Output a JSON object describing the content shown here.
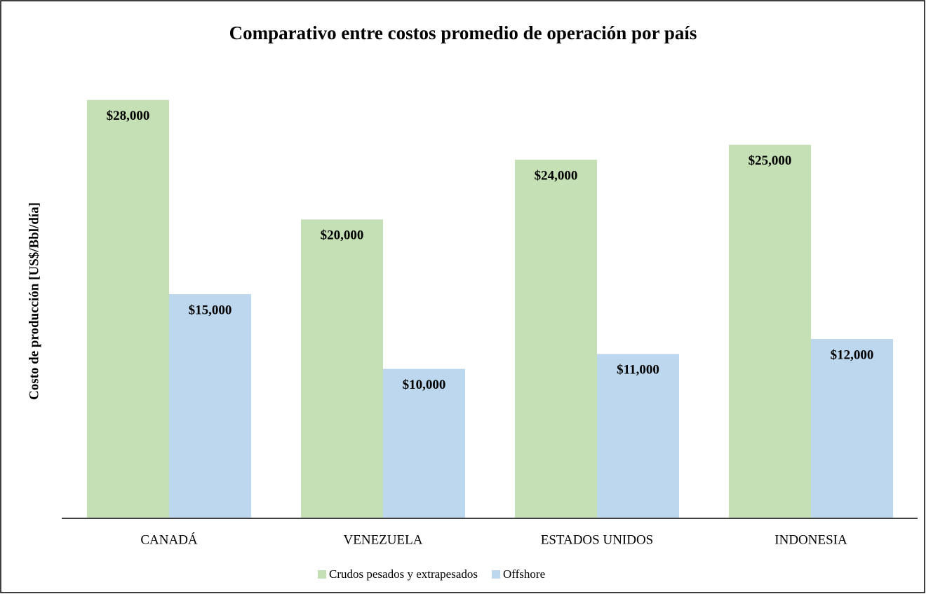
{
  "chart_data": {
    "type": "bar",
    "title": "Comparativo entre costos promedio de operación por país",
    "y_label": "Costo de producción [US$/Bbl/día]",
    "categories": [
      "CANADÁ",
      "VENEZUELA",
      "ESTADOS UNIDOS",
      "INDONESIA"
    ],
    "series": [
      {
        "name": "Crudos pesados y extrapesados",
        "color": "#c5e0b4",
        "values": [
          28000,
          20000,
          24000,
          25000
        ],
        "value_labels": [
          "$28,000",
          "$20,000",
          "$24,000",
          "$25,000"
        ]
      },
      {
        "name": "Offshore",
        "color": "#bdd7ee",
        "values": [
          15000,
          10000,
          11000,
          12000
        ],
        "value_labels": [
          "$15,000",
          "$10,000",
          "$11,000",
          "$12,000"
        ]
      }
    ],
    "ylim": [
      0,
      30000
    ],
    "legend": "bottom"
  }
}
